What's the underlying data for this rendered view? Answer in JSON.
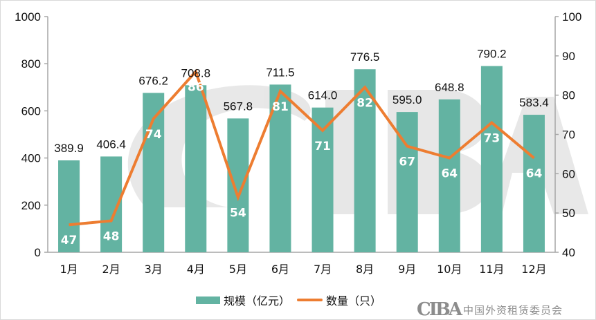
{
  "chart_data": {
    "type": "bar+line",
    "categories": [
      "1月",
      "2月",
      "3月",
      "4月",
      "5月",
      "6月",
      "7月",
      "8月",
      "9月",
      "10月",
      "11月",
      "12月"
    ],
    "series": [
      {
        "name": "规模（亿元）",
        "type": "bar",
        "axis": "left",
        "color": "#63b3a2",
        "values": [
          389.9,
          406.4,
          676.2,
          708.8,
          567.8,
          711.5,
          614.0,
          776.5,
          595.0,
          648.8,
          790.2,
          583.4
        ],
        "labels": [
          "389.9",
          "406.4",
          "676.2",
          "708.8",
          "567.8",
          "711.5",
          "614.0",
          "776.5",
          "595.0",
          "648.8",
          "790.2",
          "583.4"
        ]
      },
      {
        "name": "数量（只）",
        "type": "line",
        "axis": "right",
        "color": "#ed7d31",
        "values": [
          47,
          48,
          74,
          86,
          54,
          81,
          71,
          82,
          67,
          64,
          73,
          64
        ],
        "labels": [
          "47",
          "48",
          "74",
          "86",
          "54",
          "81",
          "71",
          "82",
          "67",
          "64",
          "73",
          "64"
        ]
      }
    ],
    "title": "",
    "xlabel": "",
    "ylabel": "",
    "ylim": [
      0,
      1000
    ],
    "y2lim": [
      40,
      100
    ],
    "yticks": [
      "0",
      "200",
      "400",
      "600",
      "800",
      "1000"
    ],
    "y2ticks": [
      "40",
      "50",
      "60",
      "70",
      "80",
      "90",
      "100"
    ],
    "grid": false,
    "legend_position": "bottom"
  },
  "legend": {
    "bar_label": "规模（亿元）",
    "line_label": "数量（只）"
  },
  "watermark": {
    "logo_mark": "CIBA",
    "logo_text": "中国外资租赁委员会"
  }
}
